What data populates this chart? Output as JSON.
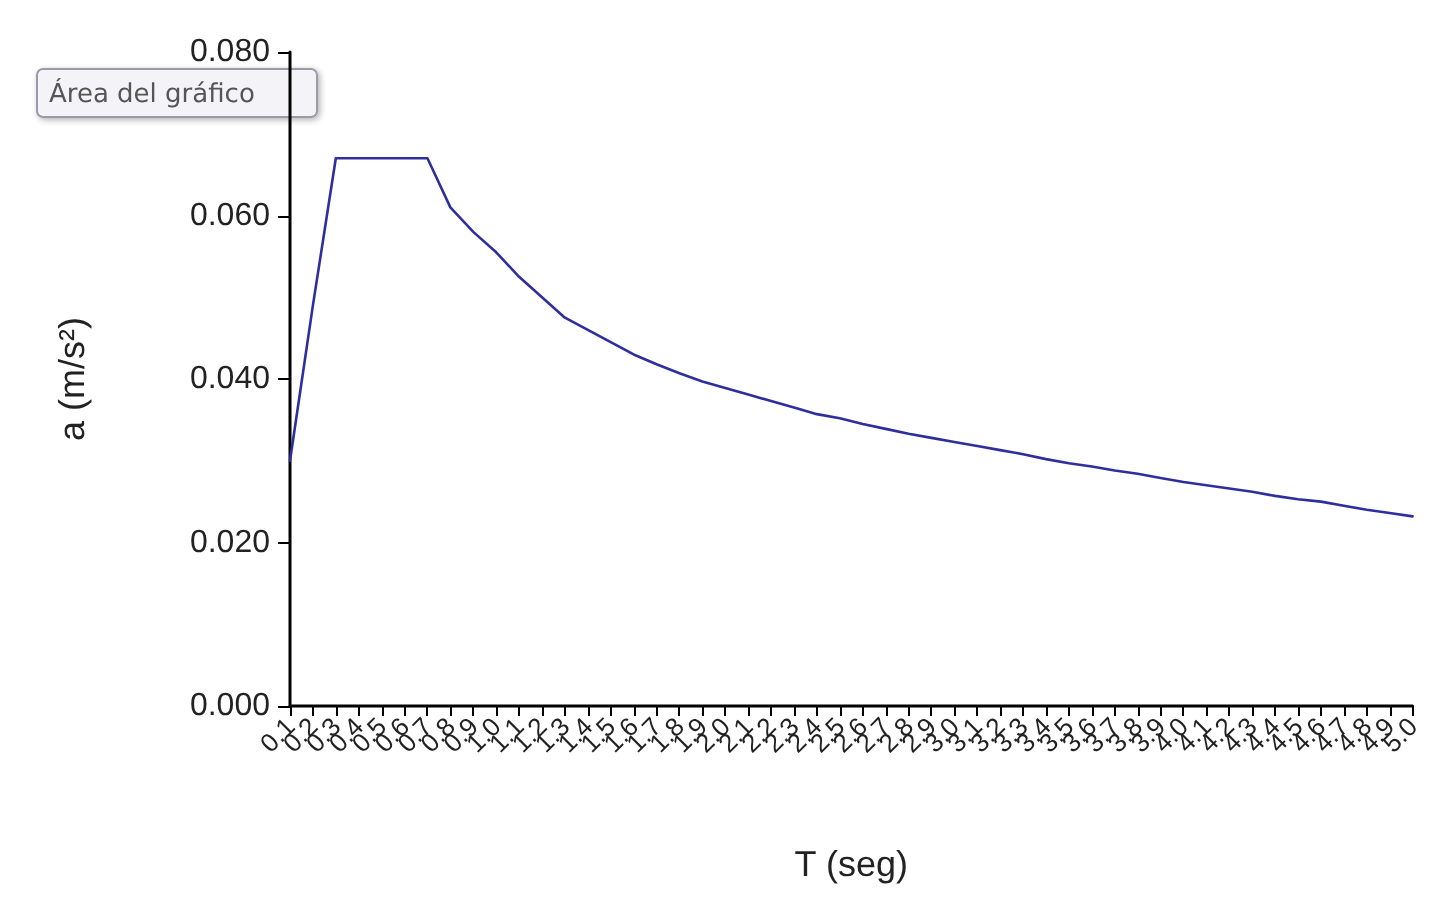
{
  "chart_data": {
    "type": "line",
    "xlabel": "T (seg)",
    "ylabel": "a (m/s²)",
    "annotations": [
      "Área del gráfico"
    ],
    "categories": [
      "0.1",
      "0.2",
      "0.3",
      "0.4",
      "0.5",
      "0.6",
      "0.7",
      "0.8",
      "0.9",
      "1.0",
      "1.1",
      "1.2",
      "1.3",
      "1.4",
      "1.5",
      "1.6",
      "1.7",
      "1.8",
      "1.9",
      "2.0",
      "2.1",
      "2.2",
      "2.3",
      "2.4",
      "2.5",
      "2.6",
      "2.7",
      "2.8",
      "2.9",
      "3.0",
      "3.1",
      "3.2",
      "3.3",
      "3.4",
      "3.5",
      "3.6",
      "3.7",
      "3.8",
      "3.9",
      "4.0",
      "4.1",
      "4.2",
      "4.3",
      "4.4",
      "4.5",
      "4.6",
      "4.7",
      "4.8",
      "4.9",
      "5.0"
    ],
    "series": [
      {
        "color": "#2e2e9e",
        "values": [
          0.03,
          0.049,
          0.067,
          0.067,
          0.067,
          0.067,
          0.067,
          0.061,
          0.058,
          0.0555,
          0.0525,
          0.05,
          0.0475,
          0.046,
          0.0445,
          0.043,
          0.0418,
          0.0407,
          0.0397,
          0.0389,
          0.0381,
          0.0373,
          0.0365,
          0.0357,
          0.0352,
          0.0345,
          0.0339,
          0.0333,
          0.0328,
          0.0323,
          0.0318,
          0.0313,
          0.0308,
          0.0302,
          0.0297,
          0.0293,
          0.0288,
          0.0284,
          0.0279,
          0.0274,
          0.027,
          0.0266,
          0.0262,
          0.0257,
          0.0253,
          0.025,
          0.0245,
          0.024,
          0.0236,
          0.0232
        ]
      }
    ],
    "ylim": [
      0,
      0.08
    ],
    "yticks": [
      {
        "value": 0,
        "label": "0.000"
      },
      {
        "value": 0.02,
        "label": "0.020"
      },
      {
        "value": 0.04,
        "label": "0.040"
      },
      {
        "value": 0.06,
        "label": "0.060"
      },
      {
        "value": 0.08,
        "label": "0.080"
      }
    ],
    "grid": false,
    "marker": "none",
    "line_style": "solid"
  }
}
